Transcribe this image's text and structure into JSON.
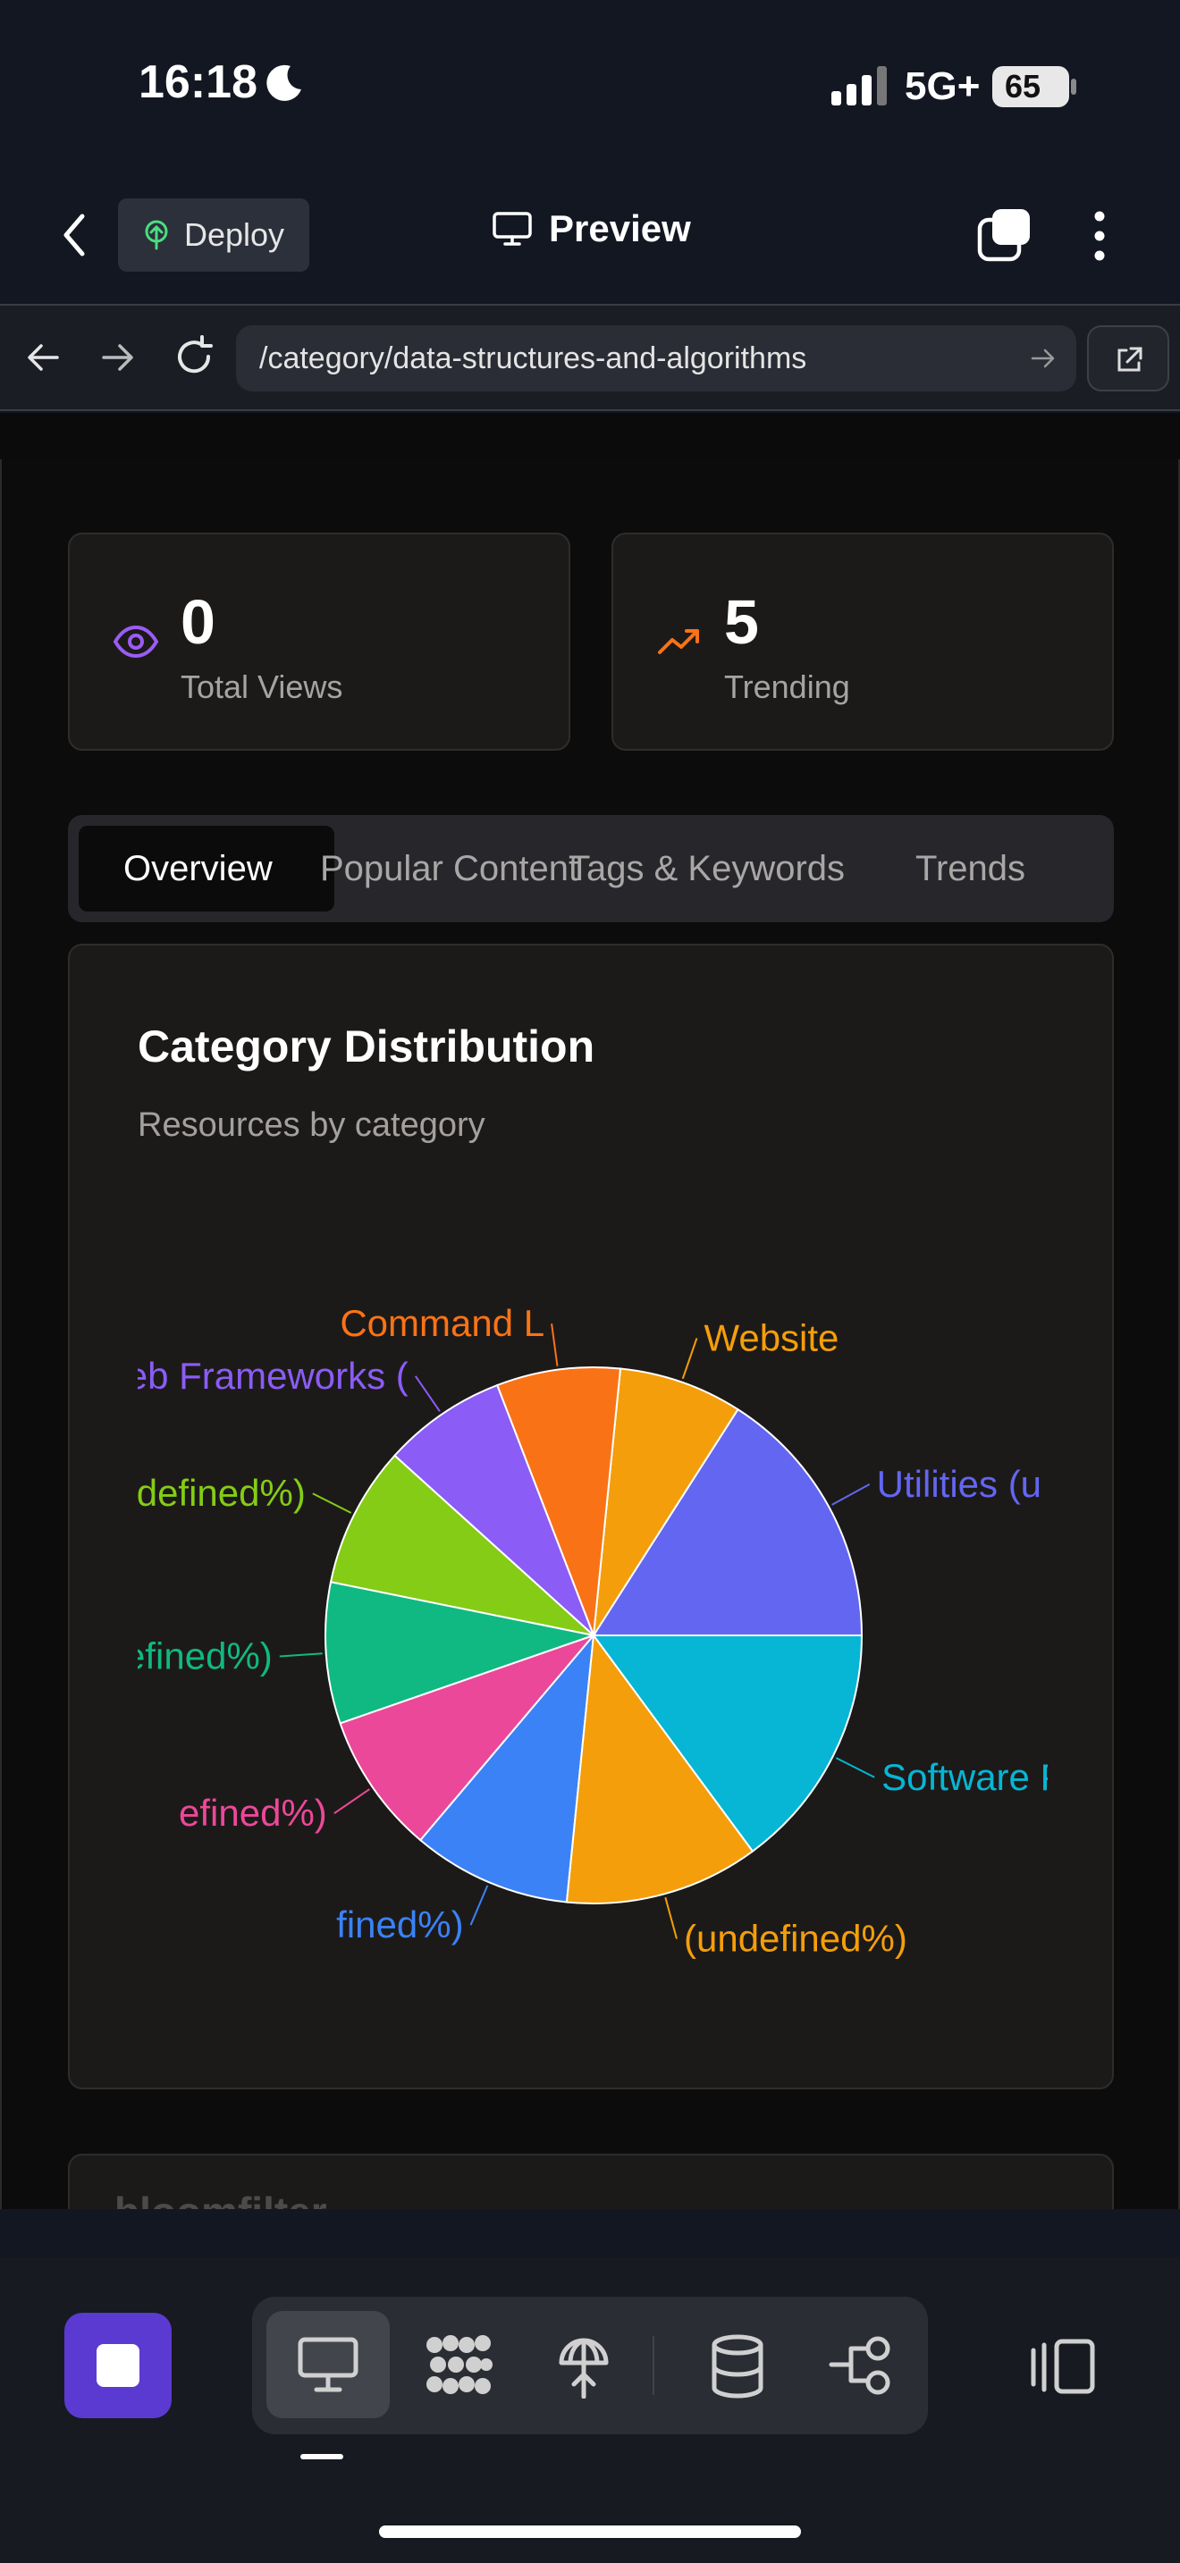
{
  "status_bar": {
    "time": "16:18",
    "network": "5G+",
    "battery": "65"
  },
  "header": {
    "deploy_label": "Deploy",
    "title": "Preview"
  },
  "browser": {
    "url": "/category/data-structures-and-algorithms"
  },
  "stats": [
    {
      "value": "0",
      "label": "Total Views",
      "icon": "eye-icon",
      "color": "#9b5cf6"
    },
    {
      "value": "5",
      "label": "Trending",
      "icon": "trending-up-icon",
      "color": "#f97316"
    }
  ],
  "tabs": [
    {
      "label": "Overview",
      "active": true
    },
    {
      "label": "Popular Content",
      "active": false
    },
    {
      "label": "Tags & Keywords",
      "active": false
    },
    {
      "label": "Trends",
      "active": false
    }
  ],
  "chart_card": {
    "title": "Category Distribution",
    "subtitle": "Resources by category"
  },
  "chart_data": {
    "type": "pie",
    "title": "Category Distribution",
    "subtitle": "Resources by category",
    "slices": [
      {
        "label": "Utilities (undefined%)",
        "visible_label": "Utilities (u",
        "value": 15,
        "color": "#6366f1"
      },
      {
        "label": "Websites (undefined%)",
        "visible_label": "Website",
        "value": 7,
        "color": "#f59e0b"
      },
      {
        "label": "Command Line (undefined%)",
        "visible_label": "Command L",
        "value": 7,
        "color": "#f97316"
      },
      {
        "label": "Web Frameworks (undefined%)",
        "visible_label": "Web Frameworks (",
        "value": 7,
        "color": "#8b5cf6"
      },
      {
        "label": "Testing (undefined%)",
        "visible_label": "Testing (undefined%)",
        "value": 8,
        "color": "#84cc16"
      },
      {
        "label": "g (undefined%)",
        "visible_label": "g (undefined%)",
        "value": 8,
        "color": "#10b981"
      },
      {
        "label": "efined%)",
        "visible_label": "efined%)",
        "value": 8,
        "color": "#ec4899"
      },
      {
        "label": "fined%)",
        "visible_label": "fined%)",
        "value": 9,
        "color": "#3b82f6"
      },
      {
        "label": "(undefined%)",
        "visible_label": "(undefined%)",
        "value": 11,
        "color": "#f59e0b"
      },
      {
        "label": "Software Packages (undefined%)",
        "visible_label": "Software Packages (ur",
        "value": 14,
        "color": "#06b6d4"
      }
    ]
  },
  "next_card": {
    "title": "bloomfilter"
  }
}
